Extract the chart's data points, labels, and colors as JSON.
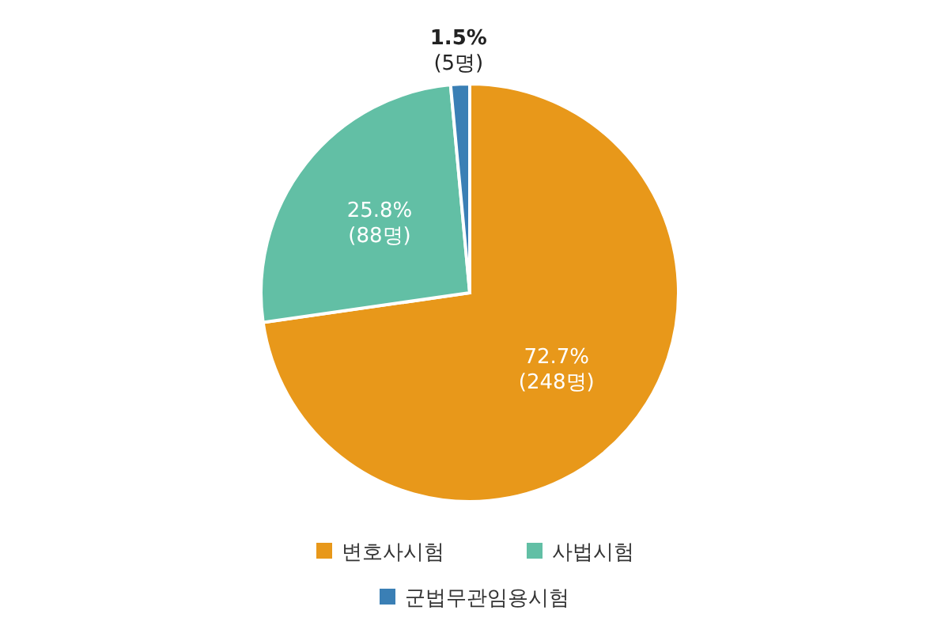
{
  "chart_data": {
    "type": "pie",
    "categories": [
      "변호사시험",
      "사법시험",
      "군법무관임용시험"
    ],
    "values": [
      248,
      88,
      5
    ],
    "colors": [
      "#e8981a",
      "#62bfa5",
      "#3a7fb5"
    ],
    "value_labels": [
      "72.7%\n(248명)",
      "25.8%\n(88명)",
      "1.5%\n(5명)"
    ],
    "legend": "bottom"
  }
}
